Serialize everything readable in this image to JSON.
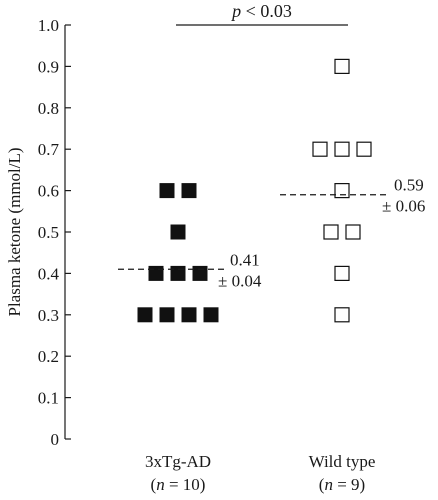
{
  "chart_data": {
    "type": "scatter",
    "ylabel": "Plasma ketone (mmol/L)",
    "ylim": [
      0,
      1.0
    ],
    "yticks": [
      "0",
      "0.1",
      "0.2",
      "0.3",
      "0.4",
      "0.5",
      "0.6",
      "0.7",
      "0.8",
      "0.9",
      "1.0"
    ],
    "grid": false,
    "categories": [
      {
        "label": "3xTg-AD",
        "n_label": "(n = 10)",
        "n_italic": "n",
        "n_rest": " = 10)"
      },
      {
        "label": "Wild type",
        "n_label": "(n = 9)",
        "n_italic": "n",
        "n_rest": " = 9)"
      }
    ],
    "series": [
      {
        "category": "3xTg-AD",
        "marker": "filled-square",
        "color": "#111111",
        "values": [
          0.6,
          0.6,
          0.5,
          0.4,
          0.4,
          0.4,
          0.3,
          0.3,
          0.3,
          0.3
        ],
        "mean": 0.41,
        "mean_label": "0.41",
        "sem_label": "± 0.04"
      },
      {
        "category": "Wild type",
        "marker": "open-square",
        "color": "#111111",
        "values": [
          0.9,
          0.7,
          0.7,
          0.7,
          0.6,
          0.5,
          0.5,
          0.4,
          0.3
        ],
        "mean": 0.59,
        "mean_label": "0.59",
        "sem_label": "± 0.06"
      }
    ],
    "significance": {
      "p": "p",
      "text": " < 0.03",
      "y": 1.0
    }
  }
}
